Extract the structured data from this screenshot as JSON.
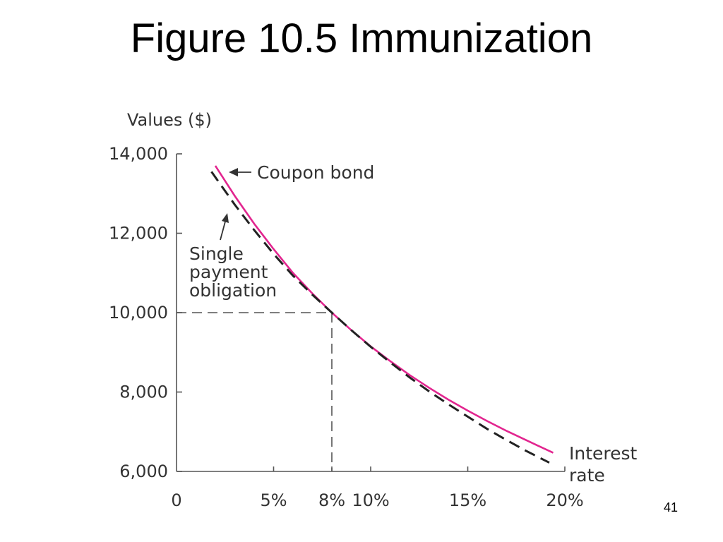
{
  "slide": {
    "title": "Figure 10.5 Immunization",
    "page_number": "41"
  },
  "colors": {
    "coupon_bond": "#e2258f",
    "single_payment": "#222222",
    "axis": "#555555",
    "text": "#333333"
  },
  "chart_data": {
    "type": "line",
    "ylabel": "Values ($)",
    "xlabel": "Interest rate",
    "xlim": [
      0,
      20
    ],
    "ylim": [
      6000,
      14000
    ],
    "x_ticks": [
      0,
      5,
      8,
      10,
      15,
      20
    ],
    "x_tick_labels": [
      "0",
      "5%",
      "8%",
      "10%",
      "15%",
      "20%"
    ],
    "y_ticks": [
      6000,
      8000,
      10000,
      12000,
      14000
    ],
    "y_tick_labels": [
      "6,000",
      "8,000",
      "10,000",
      "12,000",
      "14,000"
    ],
    "grid": false,
    "series": [
      {
        "name": "Coupon bond",
        "style": "solid",
        "x": [
          2,
          3,
          4,
          5,
          6,
          7,
          8,
          9,
          10,
          11,
          12,
          13,
          14,
          15,
          16,
          17,
          18,
          19.4
        ],
        "y": [
          13700,
          12940,
          12240,
          11600,
          11000,
          10480,
          10000,
          9560,
          9150,
          8780,
          8430,
          8110,
          7810,
          7530,
          7270,
          7020,
          6790,
          6470
        ]
      },
      {
        "name": "Single payment obligation",
        "style": "dashed",
        "x": [
          1.8,
          3,
          4,
          5,
          6,
          7,
          8,
          9,
          10,
          11,
          12,
          13,
          14,
          15,
          16,
          17,
          18,
          19.2
        ],
        "y": [
          13550,
          12720,
          12080,
          11480,
          10930,
          10450,
          10000,
          9560,
          9140,
          8750,
          8370,
          8020,
          7690,
          7380,
          7070,
          6790,
          6520,
          6220
        ]
      }
    ],
    "reference_point": {
      "x": 8,
      "y": 10000
    },
    "annotations": [
      {
        "text": "Coupon bond"
      },
      {
        "text": "Single payment obligation",
        "lines": [
          "Single",
          "payment",
          "obligation"
        ]
      }
    ]
  }
}
